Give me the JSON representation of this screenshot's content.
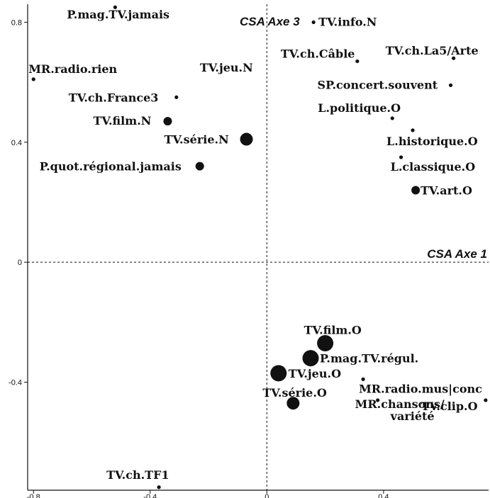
{
  "chart_data": {
    "type": "scatter",
    "title": "",
    "xlim": [
      -0.82,
      0.76
    ],
    "ylim": [
      -0.76,
      0.86
    ],
    "x_ticks": [
      {
        "value": -0.8,
        "label": "-0.8"
      },
      {
        "value": -0.4,
        "label": "-0.4"
      },
      {
        "value": 0,
        "label": "0"
      },
      {
        "value": 0.4,
        "label": "0.4"
      }
    ],
    "y_ticks": [
      {
        "value": 0.8,
        "label": "0.8"
      },
      {
        "value": 0.4,
        "label": "0.4"
      },
      {
        "value": 0,
        "label": "0"
      },
      {
        "value": -0.4,
        "label": "-0.4"
      }
    ],
    "axis1_label": "CSA Axe 1",
    "axis3_label": "CSA Axe 3",
    "grid": false,
    "point_color": "#111111",
    "points": [
      {
        "label": "P.mag.TV.jamais",
        "x": -0.52,
        "y": 0.85,
        "size": "small"
      },
      {
        "label": "TV.info.N",
        "x": 0.16,
        "y": 0.8,
        "size": "small"
      },
      {
        "label": "TV.ch.Câble",
        "x": 0.31,
        "y": 0.67,
        "size": "small"
      },
      {
        "label": "TV.ch.La5/Arte",
        "x": 0.64,
        "y": 0.68,
        "size": "small"
      },
      {
        "label": "MR.radio.rien",
        "x": -0.8,
        "y": 0.61,
        "size": "small"
      },
      {
        "label": "TV.jeu.N",
        "x": -0.13,
        "y": 0.65,
        "size": "none"
      },
      {
        "label": "SP.concert.souvent",
        "x": 0.63,
        "y": 0.59,
        "size": "small"
      },
      {
        "label": "TV.ch.France3",
        "x": -0.31,
        "y": 0.55,
        "size": "small"
      },
      {
        "label": "L.politique.O",
        "x": 0.43,
        "y": 0.48,
        "size": "small"
      },
      {
        "label": "TV.film.N",
        "x": -0.34,
        "y": 0.47,
        "size": "medium"
      },
      {
        "label": "L.historique.O",
        "x": 0.5,
        "y": 0.44,
        "size": "small"
      },
      {
        "label": "TV.série.N",
        "x": -0.07,
        "y": 0.41,
        "size": "large"
      },
      {
        "label": "L.classique.O",
        "x": 0.46,
        "y": 0.35,
        "size": "small"
      },
      {
        "label": "P.quot.régional.jamais",
        "x": -0.23,
        "y": 0.32,
        "size": "medium"
      },
      {
        "label": "TV.art.O",
        "x": 0.51,
        "y": 0.24,
        "size": "medium"
      },
      {
        "label": "TV.film.O",
        "x": 0.2,
        "y": -0.27,
        "size": "xlarge"
      },
      {
        "label": "P.mag.TV.régul.",
        "x": 0.15,
        "y": -0.32,
        "size": "xlarge"
      },
      {
        "label": "TV.jeu.O",
        "x": 0.04,
        "y": -0.37,
        "size": "xlarge"
      },
      {
        "label": "MR.radio.mus|conc",
        "x": 0.33,
        "y": -0.39,
        "size": "small"
      },
      {
        "label": "TV.série.O",
        "x": 0.09,
        "y": -0.47,
        "size": "large"
      },
      {
        "label": "MR.chansons/ variété",
        "x": 0.38,
        "y": -0.46,
        "size": "small"
      },
      {
        "label": "TV.clip.O",
        "x": 0.75,
        "y": -0.46,
        "size": "small"
      },
      {
        "label": "TV.ch.TF1",
        "x": -0.37,
        "y": -0.75,
        "size": "small"
      }
    ]
  }
}
